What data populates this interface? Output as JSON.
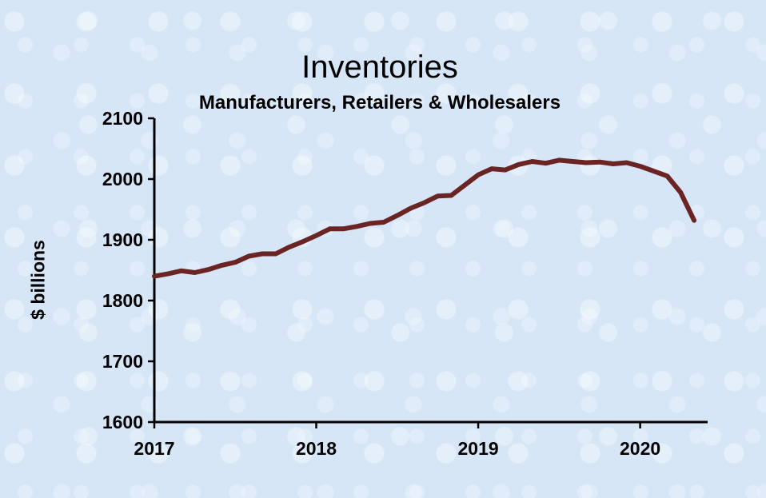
{
  "chart_data": {
    "type": "line",
    "title": "Inventories",
    "subtitle": "Manufacturers, Retailers & Wholesalers",
    "xlabel": "",
    "ylabel": "$ billions",
    "ylim": [
      1600,
      2100
    ],
    "xlim": [
      "2017-01",
      "2020-06"
    ],
    "y_ticks": [
      "1600",
      "1700",
      "1800",
      "1900",
      "2000",
      "2100"
    ],
    "x_ticks": [
      "2017",
      "2018",
      "2019",
      "2020"
    ],
    "grid": false,
    "legend": "none",
    "line_color": "#6b2424",
    "series": [
      {
        "x": [
          "2017-01",
          "2017-02",
          "2017-03",
          "2017-04",
          "2017-05",
          "2017-06",
          "2017-07",
          "2017-08",
          "2017-09",
          "2017-10",
          "2017-11",
          "2017-12",
          "2018-01",
          "2018-02",
          "2018-03",
          "2018-04",
          "2018-05",
          "2018-06",
          "2018-07",
          "2018-08",
          "2018-09",
          "2018-10",
          "2018-11",
          "2018-12",
          "2019-01",
          "2019-02",
          "2019-03",
          "2019-04",
          "2019-05",
          "2019-06",
          "2019-07",
          "2019-08",
          "2019-09",
          "2019-10",
          "2019-11",
          "2019-12",
          "2020-01",
          "2020-02",
          "2020-03",
          "2020-04",
          "2020-05"
        ],
        "values": [
          1840,
          1844,
          1849,
          1846,
          1851,
          1858,
          1863,
          1873,
          1877,
          1877,
          1888,
          1897,
          1907,
          1918,
          1918,
          1922,
          1927,
          1929,
          1940,
          1952,
          1961,
          1972,
          1973,
          1990,
          2007,
          2017,
          2015,
          2024,
          2029,
          2026,
          2031,
          2029,
          2027,
          2028,
          2025,
          2027,
          2021,
          2013,
          2005,
          1978,
          1932
        ]
      }
    ]
  }
}
